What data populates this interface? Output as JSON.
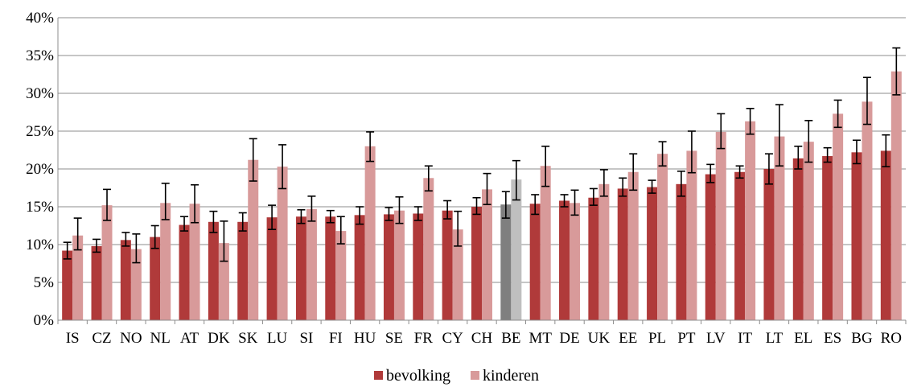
{
  "chart_data": {
    "type": "bar",
    "categories": [
      "IS",
      "CZ",
      "NO",
      "NL",
      "AT",
      "DK",
      "SK",
      "LU",
      "SI",
      "FI",
      "HU",
      "SE",
      "FR",
      "CY",
      "CH",
      "BE",
      "MT",
      "DE",
      "UK",
      "EE",
      "PL",
      "PT",
      "LV",
      "IT",
      "LT",
      "EL",
      "ES",
      "BG",
      "RO"
    ],
    "series": [
      {
        "name": "bevolking",
        "color": "#b03a3a",
        "highlight_color": "#7f7f7f",
        "values": [
          9.2,
          9.8,
          10.6,
          11.0,
          12.6,
          13.0,
          13.0,
          13.6,
          13.7,
          13.7,
          13.9,
          14.0,
          14.1,
          14.5,
          15.0,
          15.3,
          15.4,
          15.8,
          16.2,
          17.4,
          17.6,
          18.0,
          19.3,
          19.6,
          20.0,
          21.4,
          21.7,
          22.2,
          22.4
        ],
        "errors": [
          [
            8.1,
            10.3
          ],
          [
            9.0,
            10.7
          ],
          [
            9.8,
            11.6
          ],
          [
            9.5,
            12.5
          ],
          [
            11.8,
            13.7
          ],
          [
            11.6,
            14.4
          ],
          [
            11.8,
            14.2
          ],
          [
            12.0,
            15.2
          ],
          [
            12.8,
            14.6
          ],
          [
            12.9,
            14.5
          ],
          [
            12.7,
            15.0
          ],
          [
            13.2,
            14.9
          ],
          [
            13.2,
            15.0
          ],
          [
            13.4,
            15.8
          ],
          [
            14.0,
            16.2
          ],
          [
            13.5,
            17.0
          ],
          [
            14.0,
            16.6
          ],
          [
            15.0,
            16.6
          ],
          [
            15.2,
            17.4
          ],
          [
            16.4,
            18.8
          ],
          [
            16.8,
            18.5
          ],
          [
            16.4,
            19.7
          ],
          [
            18.2,
            20.6
          ],
          [
            18.8,
            20.4
          ],
          [
            18.0,
            22.0
          ],
          [
            20.0,
            23.0
          ],
          [
            20.9,
            22.8
          ],
          [
            20.7,
            23.8
          ],
          [
            20.3,
            24.5
          ]
        ]
      },
      {
        "name": "kinderen",
        "color": "#d89a9a",
        "highlight_color": "#bfbfbf",
        "values": [
          11.2,
          15.2,
          9.4,
          15.5,
          15.4,
          10.2,
          21.2,
          20.3,
          14.7,
          11.8,
          23.0,
          14.5,
          18.8,
          12.0,
          17.3,
          18.6,
          20.4,
          15.5,
          18.0,
          19.6,
          22.0,
          22.4,
          24.9,
          26.3,
          24.3,
          23.6,
          27.3,
          28.9,
          32.9
        ],
        "errors": [
          [
            9.3,
            13.5
          ],
          [
            13.2,
            17.3
          ],
          [
            7.6,
            11.4
          ],
          [
            13.3,
            18.1
          ],
          [
            12.9,
            17.9
          ],
          [
            7.8,
            13.1
          ],
          [
            18.4,
            24.0
          ],
          [
            17.4,
            23.2
          ],
          [
            13.1,
            16.4
          ],
          [
            10.1,
            13.7
          ],
          [
            21.0,
            24.9
          ],
          [
            12.8,
            16.3
          ],
          [
            17.1,
            20.4
          ],
          [
            9.8,
            14.4
          ],
          [
            15.3,
            19.4
          ],
          [
            15.9,
            21.1
          ],
          [
            17.7,
            23.0
          ],
          [
            13.9,
            17.2
          ],
          [
            16.4,
            19.9
          ],
          [
            17.2,
            22.0
          ],
          [
            20.4,
            23.6
          ],
          [
            19.5,
            25.0
          ],
          [
            22.7,
            27.3
          ],
          [
            24.6,
            28.0
          ],
          [
            20.4,
            28.5
          ],
          [
            20.9,
            26.4
          ],
          [
            25.5,
            29.1
          ],
          [
            25.9,
            32.1
          ],
          [
            29.8,
            36.0
          ]
        ]
      }
    ],
    "highlight_category": "BE",
    "ylim": [
      0,
      40
    ],
    "yticks": [
      0,
      5,
      10,
      15,
      20,
      25,
      30,
      35,
      40
    ],
    "ytick_suffix": "%",
    "grid": "horizontal",
    "legend_position": "bottom",
    "title": "",
    "xlabel": "",
    "ylabel": ""
  }
}
